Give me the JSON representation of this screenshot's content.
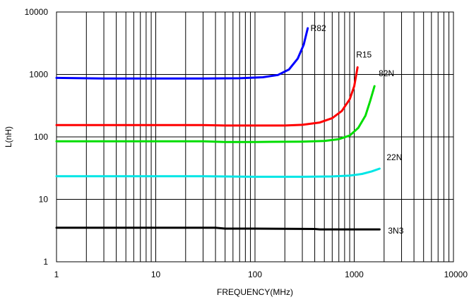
{
  "chart_data": {
    "type": "line",
    "xlabel": "FREQUENCY(MHz)",
    "ylabel": "L(nH)",
    "x_scale": "log",
    "y_scale": "log",
    "xlim": [
      1,
      10000
    ],
    "ylim": [
      1,
      10000
    ],
    "grid": true,
    "x_ticks": [
      1,
      10,
      100,
      1000,
      10000
    ],
    "x_tick_labels": [
      "1",
      "10",
      "100",
      "1000",
      "10000"
    ],
    "y_ticks": [
      1,
      10,
      100,
      1000,
      10000
    ],
    "y_tick_labels": [
      "1",
      "10",
      "100",
      "1000",
      "10000"
    ],
    "series": [
      {
        "name": "R82",
        "color": "#0000ff",
        "points": [
          [
            1,
            880
          ],
          [
            3,
            860
          ],
          [
            10,
            860
          ],
          [
            30,
            860
          ],
          [
            70,
            870
          ],
          [
            120,
            900
          ],
          [
            170,
            980
          ],
          [
            220,
            1200
          ],
          [
            270,
            1800
          ],
          [
            310,
            3000
          ],
          [
            340,
            5500
          ]
        ]
      },
      {
        "name": "R15",
        "color": "#ff0000",
        "points": [
          [
            1,
            155
          ],
          [
            10,
            155
          ],
          [
            30,
            155
          ],
          [
            50,
            152
          ],
          [
            100,
            152
          ],
          [
            200,
            152
          ],
          [
            300,
            156
          ],
          [
            450,
            170
          ],
          [
            600,
            200
          ],
          [
            750,
            260
          ],
          [
            900,
            400
          ],
          [
            1000,
            650
          ],
          [
            1080,
            1300
          ]
        ]
      },
      {
        "name": "82N",
        "color": "#00dd00",
        "points": [
          [
            1,
            85
          ],
          [
            10,
            85
          ],
          [
            30,
            85
          ],
          [
            50,
            83
          ],
          [
            100,
            83
          ],
          [
            300,
            84
          ],
          [
            500,
            86
          ],
          [
            700,
            92
          ],
          [
            900,
            105
          ],
          [
            1100,
            140
          ],
          [
            1300,
            220
          ],
          [
            1450,
            380
          ],
          [
            1600,
            650
          ]
        ]
      },
      {
        "name": "22N",
        "color": "#00e6e6",
        "points": [
          [
            1,
            23.5
          ],
          [
            10,
            23.5
          ],
          [
            30,
            23.5
          ],
          [
            100,
            23
          ],
          [
            300,
            23
          ],
          [
            600,
            23.3
          ],
          [
            900,
            24
          ],
          [
            1200,
            25.5
          ],
          [
            1500,
            28
          ],
          [
            1800,
            31
          ]
        ]
      },
      {
        "name": "3N3",
        "color": "#000000",
        "points": [
          [
            1,
            3.5
          ],
          [
            10,
            3.5
          ],
          [
            40,
            3.5
          ],
          [
            50,
            3.4
          ],
          [
            100,
            3.4
          ],
          [
            400,
            3.35
          ],
          [
            450,
            3.3
          ],
          [
            1000,
            3.3
          ],
          [
            1800,
            3.3
          ]
        ]
      }
    ]
  }
}
